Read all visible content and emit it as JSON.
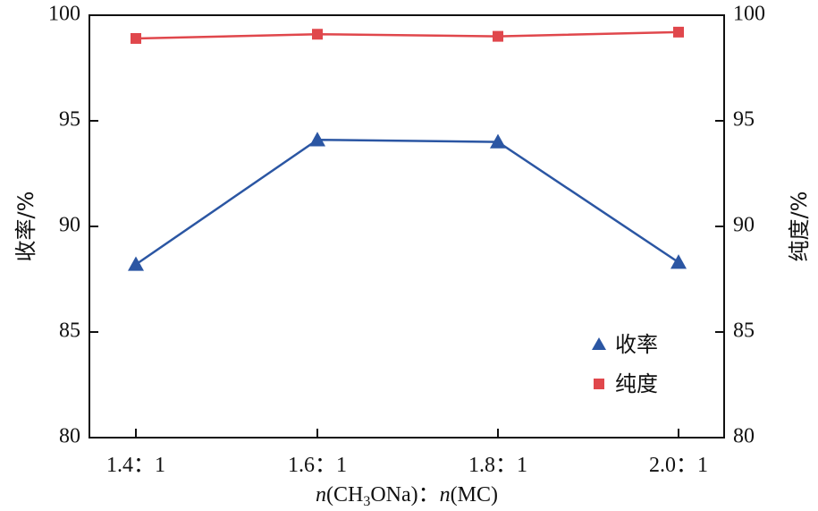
{
  "chart_data": {
    "type": "line",
    "x_categories": [
      "1.4：1",
      "1.6：1",
      "1.8：1",
      "2.0：1"
    ],
    "xlabel": {
      "n1": "n",
      "p1": "(CH",
      "sub": "3",
      "p2": "ONa)：",
      "n2": "n",
      "p3": "(MC)"
    },
    "ylabel_left": "收率/%",
    "ylabel_right": "纯度/%",
    "ylim_left": [
      80,
      100
    ],
    "ylim_right": [
      80,
      100
    ],
    "yticks_left": [
      "80",
      "85",
      "90",
      "95",
      "100"
    ],
    "yticks_right": [
      "80",
      "85",
      "90",
      "95",
      "100"
    ],
    "grid": false,
    "legend_position": "bottom-right",
    "series": [
      {
        "name": "收率",
        "axis": "left",
        "marker": "triangle",
        "color": "#2b56a3",
        "values": [
          88.2,
          94.1,
          94.0,
          88.3
        ]
      },
      {
        "name": "纯度",
        "axis": "right",
        "marker": "square",
        "color": "#e0474c",
        "values": [
          98.9,
          99.1,
          99.0,
          99.2
        ]
      }
    ]
  }
}
